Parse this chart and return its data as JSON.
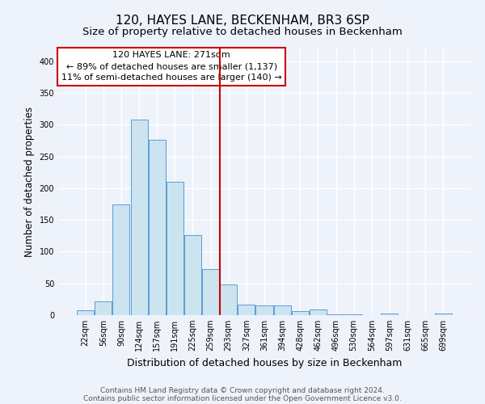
{
  "title": "120, HAYES LANE, BECKENHAM, BR3 6SP",
  "subtitle": "Size of property relative to detached houses in Beckenham",
  "xlabel": "Distribution of detached houses by size in Beckenham",
  "ylabel": "Number of detached properties",
  "bar_labels": [
    "22sqm",
    "56sqm",
    "90sqm",
    "124sqm",
    "157sqm",
    "191sqm",
    "225sqm",
    "259sqm",
    "293sqm",
    "327sqm",
    "361sqm",
    "394sqm",
    "428sqm",
    "462sqm",
    "496sqm",
    "530sqm",
    "564sqm",
    "597sqm",
    "631sqm",
    "665sqm",
    "699sqm"
  ],
  "bar_values": [
    8,
    22,
    174,
    308,
    276,
    210,
    126,
    73,
    48,
    16,
    15,
    15,
    7,
    9,
    1,
    1,
    0,
    3,
    0,
    0,
    2
  ],
  "bar_color": "#cce4f0",
  "bar_edge_color": "#5b9bd5",
  "vline_color": "#cc0000",
  "annotation_line1": "120 HAYES LANE: 271sqm",
  "annotation_line2": "← 89% of detached houses are smaller (1,137)",
  "annotation_line3": "11% of semi-detached houses are larger (140) →",
  "annotation_box_edge": "#cc0000",
  "ylim": [
    0,
    420
  ],
  "yticks": [
    0,
    50,
    100,
    150,
    200,
    250,
    300,
    350,
    400
  ],
  "footer1": "Contains HM Land Registry data © Crown copyright and database right 2024.",
  "footer2": "Contains public sector information licensed under the Open Government Licence v3.0.",
  "bg_color": "#eef2fb",
  "grid_color": "#ffffff",
  "title_fontsize": 11,
  "subtitle_fontsize": 9.5,
  "xlabel_fontsize": 9,
  "ylabel_fontsize": 8.5,
  "tick_fontsize": 7,
  "annotation_fontsize": 8,
  "footer_fontsize": 6.5
}
